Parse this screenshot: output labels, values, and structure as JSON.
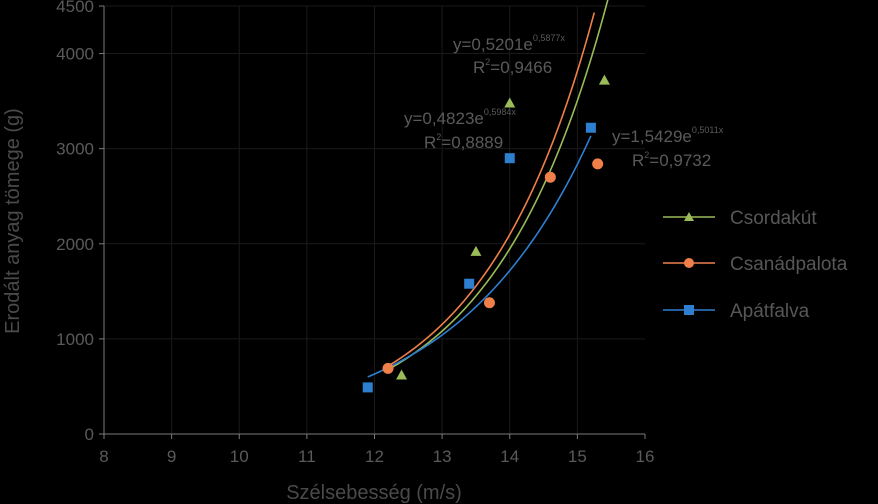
{
  "chart_data": {
    "type": "scatter",
    "xlabel": "Szélsebesség (m/s)",
    "ylabel": "Erodált anyag tömege (g)",
    "xlim": [
      8,
      16
    ],
    "ylim": [
      0,
      4500
    ],
    "x_ticks": [
      "8",
      "9",
      "10",
      "11",
      "12",
      "13",
      "14",
      "15",
      "16"
    ],
    "y_ticks": [
      "0",
      "1000",
      "2000",
      "3000",
      "4000",
      "4500"
    ],
    "legend_position": "right",
    "series": [
      {
        "name": "Csordakút",
        "marker": "triangle",
        "color": "#9bbb59",
        "points": [
          [
            12.4,
            620
          ],
          [
            13.5,
            1920
          ],
          [
            14.0,
            3480
          ],
          [
            15.4,
            3720
          ]
        ],
        "trend": {
          "a": 0.5201,
          "b": 0.5877,
          "x_range": [
            12.2,
            15.45
          ]
        },
        "equation": {
          "main": "y=0,5201e",
          "exp": "0,5877x",
          "r2_label": "R",
          "r2_sup": "2",
          "r2_value": "=0,9466"
        }
      },
      {
        "name": "Csanádpalota",
        "marker": "circle",
        "color": "#f0804a",
        "points": [
          [
            12.2,
            690
          ],
          [
            13.7,
            1380
          ],
          [
            14.6,
            2700
          ],
          [
            15.3,
            2840
          ]
        ],
        "trend": {
          "a": 0.4823,
          "b": 0.5984,
          "x_range": [
            12.2,
            15.25
          ]
        },
        "equation": {
          "main": "y=0,4823e",
          "exp": "0,5984x",
          "r2_label": "R",
          "r2_sup": "2",
          "r2_value": "=0,8889"
        }
      },
      {
        "name": "Apátfalva",
        "marker": "square",
        "color": "#2f7fd0",
        "points": [
          [
            11.9,
            490
          ],
          [
            13.4,
            1580
          ],
          [
            14.0,
            2900
          ],
          [
            15.2,
            3220
          ]
        ],
        "trend": {
          "a": 1.5429,
          "b": 0.5011,
          "x_range": [
            11.9,
            15.2
          ]
        },
        "equation": {
          "main": "y=1,5429e",
          "exp": "0,5011x",
          "r2_label": "R",
          "r2_sup": "2",
          "r2_value": "=0,9732"
        }
      }
    ]
  }
}
